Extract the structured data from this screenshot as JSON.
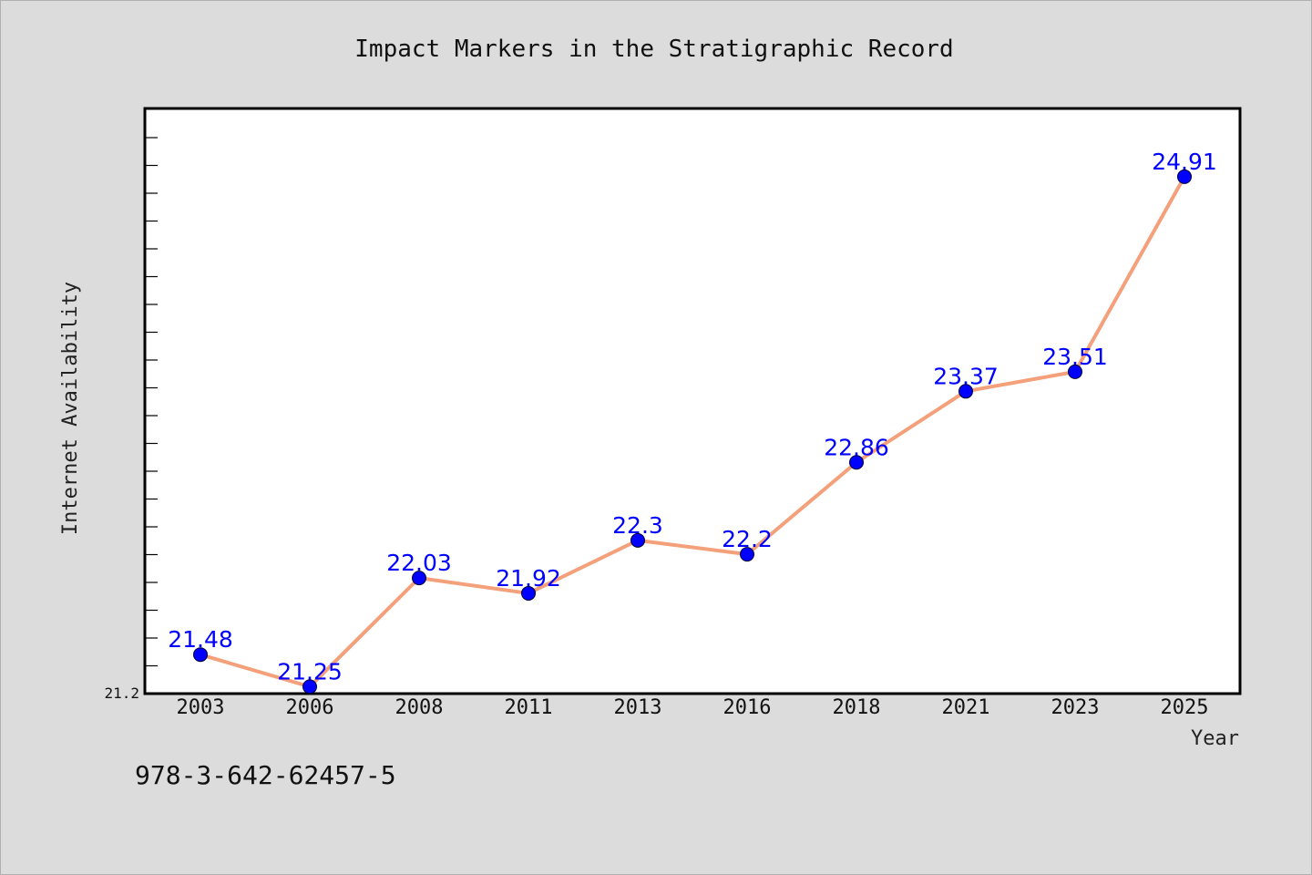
{
  "colors": {
    "background": "#dcdcdc",
    "plot_background": "#ffffff",
    "line": "#f4a07a",
    "marker": "#0000ff",
    "data_label": "#0000ff"
  },
  "footer": {
    "isbn": "978-3-642-62457-5"
  },
  "chart_data": {
    "type": "line",
    "title": "Impact Markers in the Stratigraphic Record",
    "xlabel": "Year",
    "ylabel": "Internet Availability",
    "categories": [
      "2003",
      "2006",
      "2008",
      "2011",
      "2013",
      "2016",
      "2018",
      "2021",
      "2023",
      "2025"
    ],
    "series": [
      {
        "values": [
          21.48,
          21.25,
          22.03,
          21.92,
          22.3,
          22.2,
          22.86,
          23.37,
          23.51,
          24.91
        ],
        "labels": [
          "21.48",
          "21.25",
          "22.03",
          "21.92",
          "22.3",
          "22.2",
          "22.86",
          "23.37",
          "23.51",
          "24.91"
        ]
      }
    ],
    "ylim": [
      21.2,
      25.4
    ],
    "ytick_labels": [
      "21.2"
    ],
    "grid": false,
    "legend": "none"
  }
}
